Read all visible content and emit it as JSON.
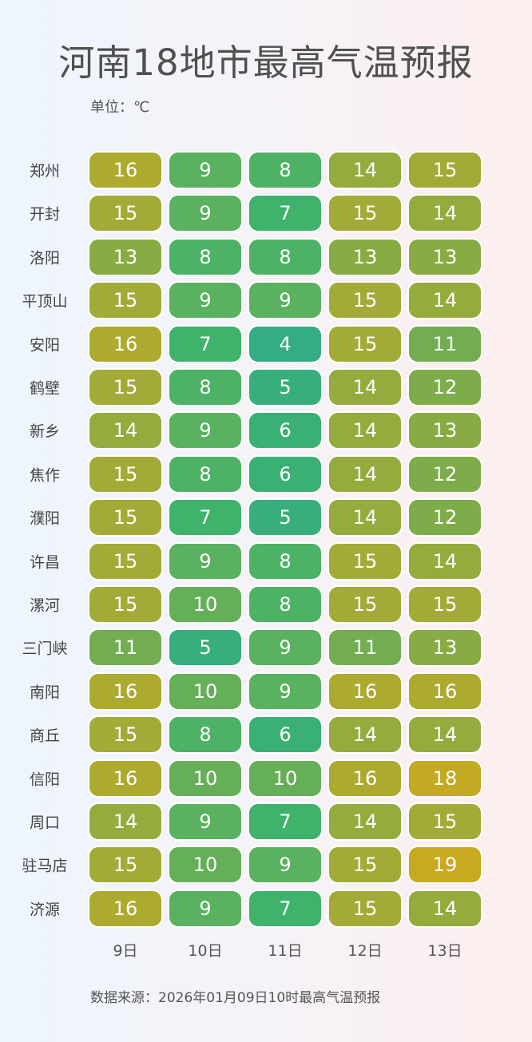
{
  "chart_data": {
    "type": "heatmap",
    "title": "河南18地市最高气温预报",
    "unit_label": "单位：℃",
    "source": "数据来源：2026年01月09日10时最高气温预报",
    "columns": [
      "9日",
      "10日",
      "11日",
      "12日",
      "13日"
    ],
    "rows": [
      "郑州",
      "开封",
      "洛阳",
      "平顶山",
      "安阳",
      "鹤壁",
      "新乡",
      "焦作",
      "濮阳",
      "许昌",
      "漯河",
      "三门峡",
      "南阳",
      "商丘",
      "信阳",
      "周口",
      "驻马店",
      "济源"
    ],
    "values": [
      [
        16,
        9,
        8,
        14,
        15
      ],
      [
        15,
        9,
        7,
        15,
        14
      ],
      [
        13,
        8,
        8,
        13,
        13
      ],
      [
        15,
        9,
        9,
        15,
        14
      ],
      [
        16,
        7,
        4,
        15,
        11
      ],
      [
        15,
        8,
        5,
        14,
        12
      ],
      [
        14,
        9,
        6,
        14,
        13
      ],
      [
        15,
        8,
        6,
        14,
        12
      ],
      [
        15,
        7,
        5,
        14,
        12
      ],
      [
        15,
        9,
        8,
        15,
        14
      ],
      [
        15,
        10,
        8,
        15,
        15
      ],
      [
        11,
        5,
        9,
        11,
        13
      ],
      [
        16,
        10,
        9,
        16,
        16
      ],
      [
        15,
        8,
        6,
        14,
        14
      ],
      [
        16,
        10,
        10,
        16,
        18
      ],
      [
        14,
        9,
        7,
        14,
        15
      ],
      [
        15,
        10,
        9,
        15,
        19
      ],
      [
        16,
        9,
        7,
        15,
        14
      ]
    ],
    "color_scale": [
      {
        "value": 4,
        "color": "#34ac86"
      },
      {
        "value": 7,
        "color": "#3fb26c"
      },
      {
        "value": 9,
        "color": "#5ab160"
      },
      {
        "value": 11,
        "color": "#72ad52"
      },
      {
        "value": 13,
        "color": "#89ab44"
      },
      {
        "value": 15,
        "color": "#a2ab38"
      },
      {
        "value": 16,
        "color": "#adaa30"
      },
      {
        "value": 18,
        "color": "#c4a923"
      },
      {
        "value": 19,
        "color": "#c9a91f"
      }
    ]
  }
}
